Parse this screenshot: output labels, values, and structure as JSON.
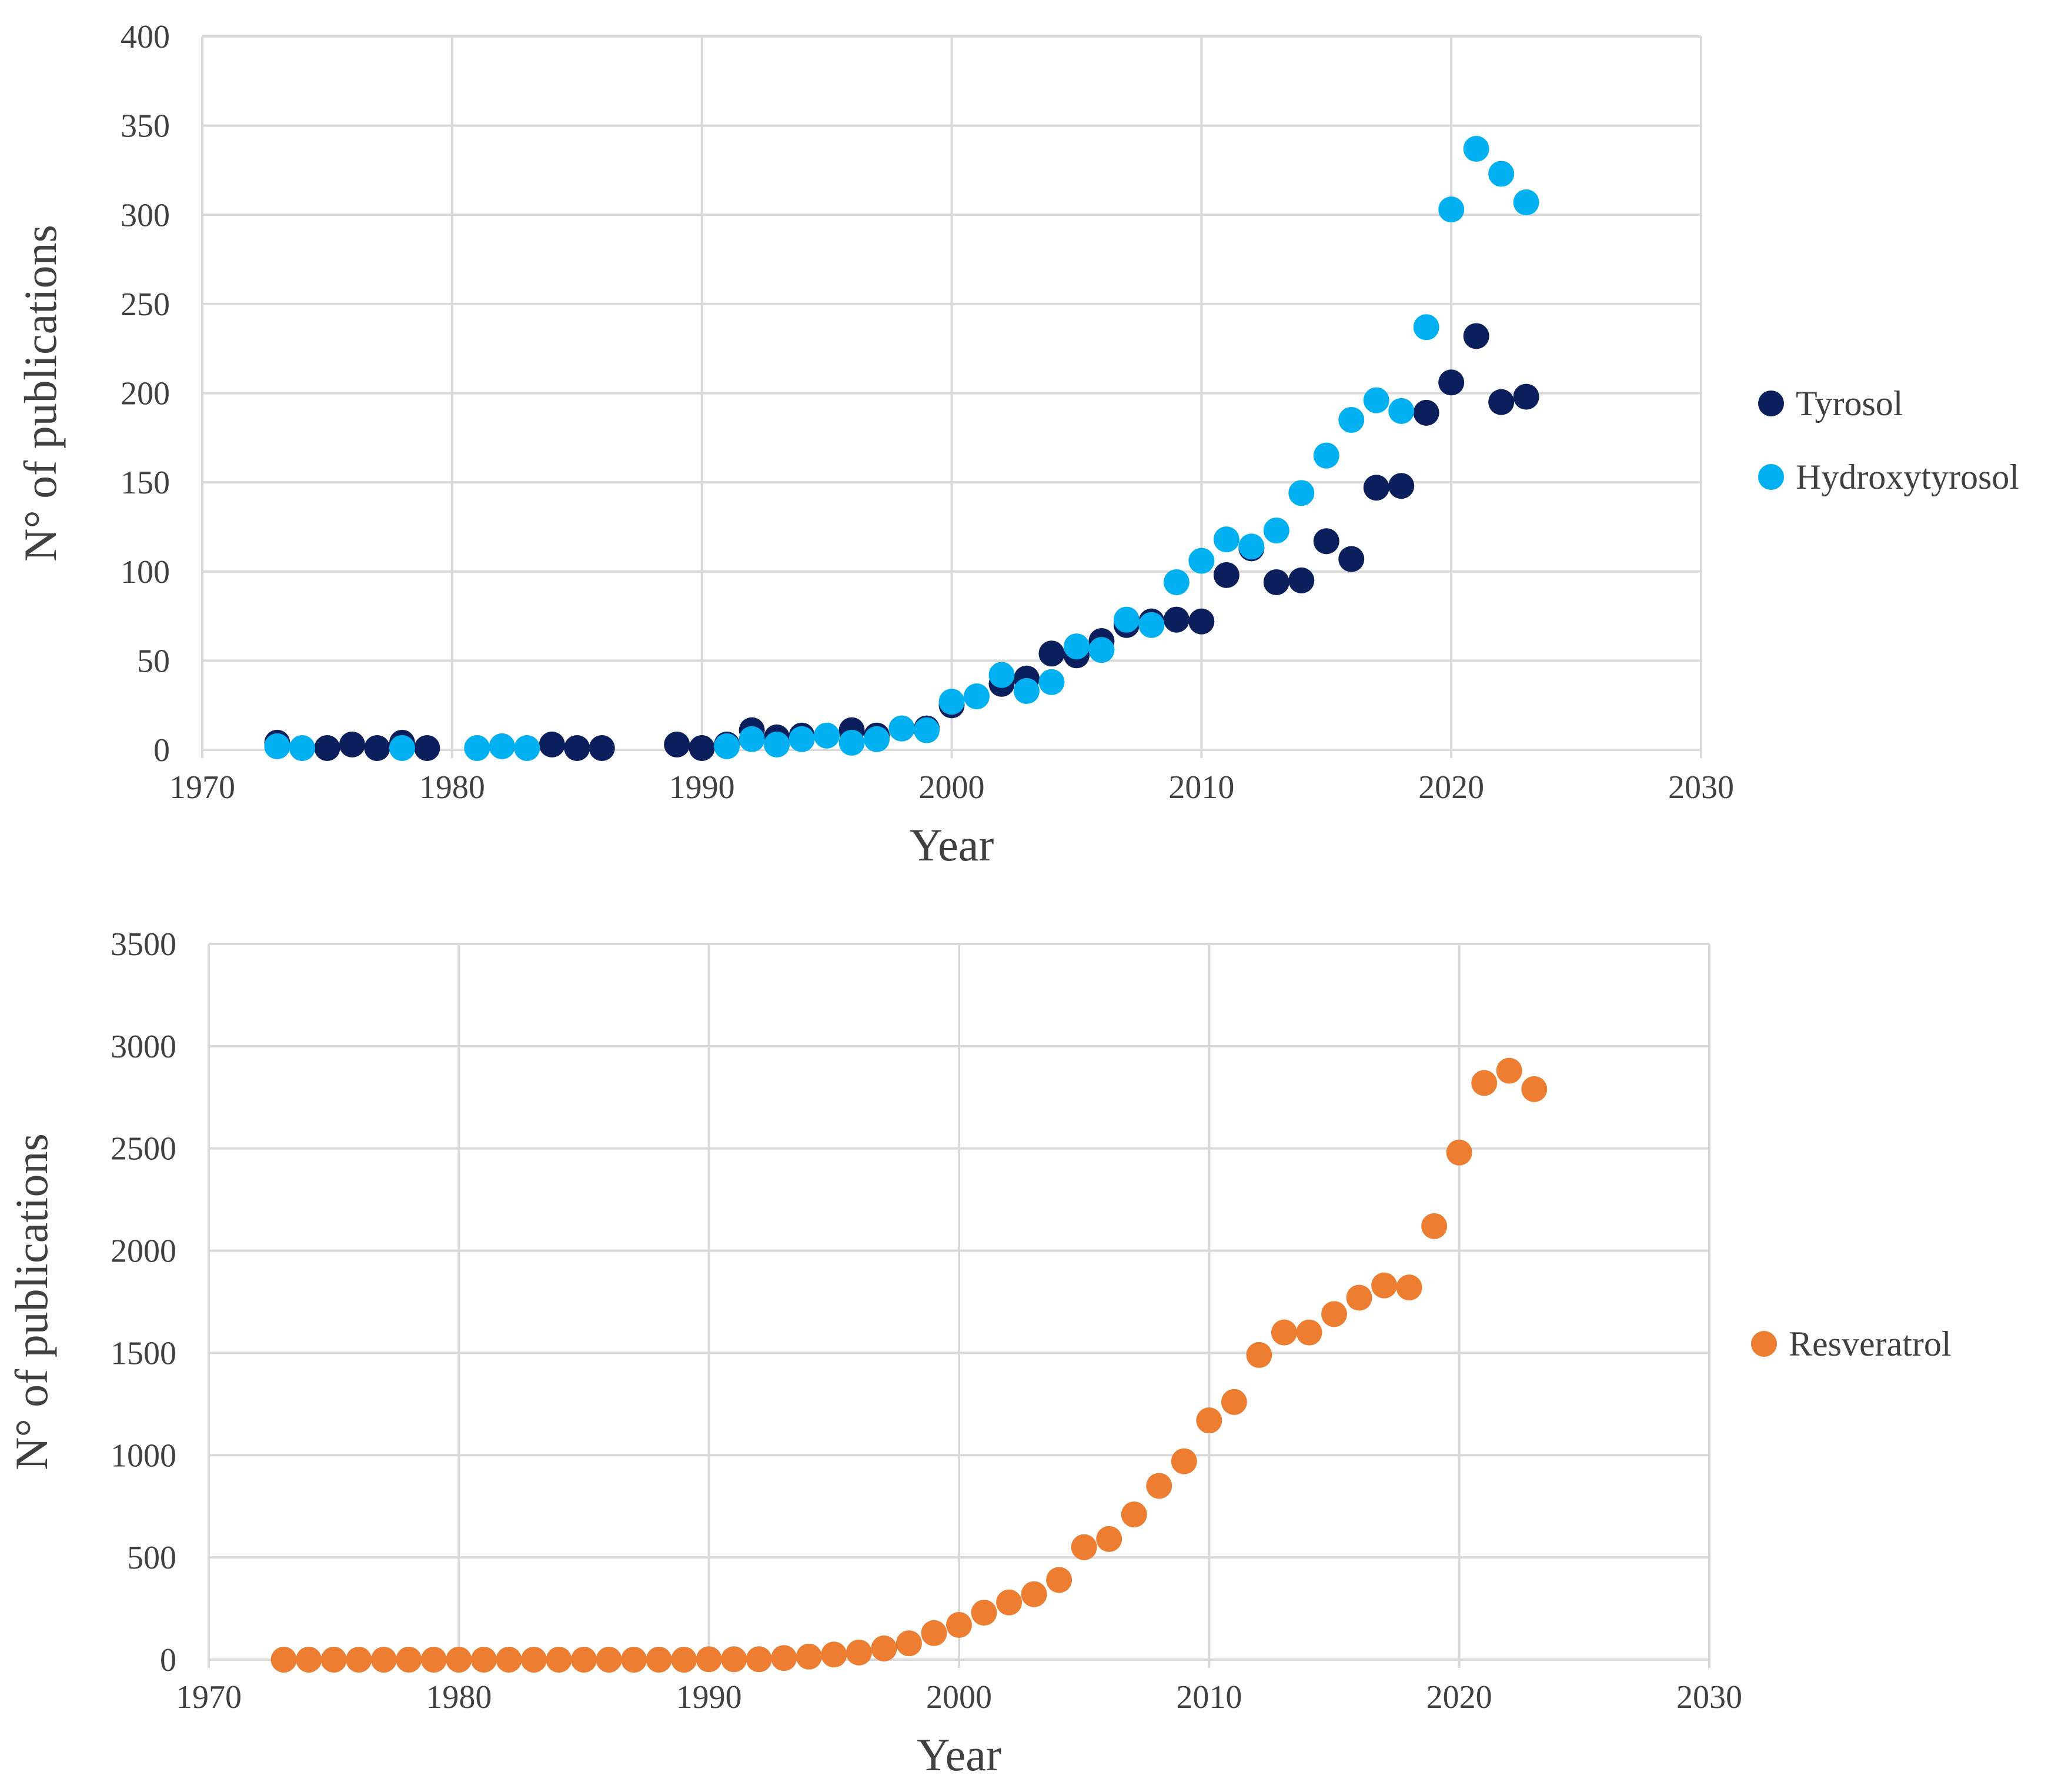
{
  "chart_data": [
    {
      "type": "scatter",
      "title": "",
      "xlabel": "Year",
      "ylabel": "N° of publications",
      "xlim": [
        1970,
        2030
      ],
      "ylim": [
        0,
        400
      ],
      "xticks": [
        1970,
        1980,
        1990,
        2000,
        2010,
        2020,
        2030
      ],
      "yticks": [
        0,
        50,
        100,
        150,
        200,
        250,
        300,
        350,
        400
      ],
      "grid": true,
      "legend_position": "right",
      "series": [
        {
          "name": "Tyrosol",
          "color": "#0b1f5c",
          "x": [
            1973,
            1975,
            1976,
            1977,
            1978,
            1979,
            1984,
            1985,
            1986,
            1989,
            1990,
            1991,
            1992,
            1993,
            1994,
            1996,
            1997,
            1998,
            1999,
            2000,
            2002,
            2003,
            2004,
            2005,
            2006,
            2007,
            2008,
            2009,
            2010,
            2011,
            2012,
            2013,
            2014,
            2015,
            2016,
            2017,
            2018,
            2019,
            2020,
            2021,
            2022,
            2023
          ],
          "y": [
            4,
            1,
            3,
            1,
            4,
            1,
            3,
            1,
            1,
            3,
            1,
            3,
            11,
            7,
            8,
            11,
            8,
            12,
            12,
            25,
            37,
            40,
            54,
            53,
            61,
            70,
            72,
            73,
            72,
            98,
            113,
            94,
            95,
            117,
            107,
            147,
            148,
            189,
            206,
            232,
            195,
            198
          ]
        },
        {
          "name": "Hydroxytyrosol",
          "color": "#00b0f0",
          "x": [
            1973,
            1974,
            1978,
            1981,
            1982,
            1983,
            1991,
            1992,
            1993,
            1994,
            1995,
            1996,
            1997,
            1998,
            1999,
            2000,
            2001,
            2002,
            2003,
            2004,
            2005,
            2006,
            2007,
            2008,
            2009,
            2010,
            2011,
            2012,
            2013,
            2014,
            2015,
            2016,
            2017,
            2018,
            2019,
            2020,
            2021,
            2022,
            2023
          ],
          "y": [
            2,
            1,
            1,
            1,
            2,
            1,
            2,
            6,
            3,
            6,
            8,
            4,
            6,
            12,
            11,
            27,
            30,
            42,
            33,
            38,
            58,
            56,
            73,
            70,
            94,
            106,
            118,
            114,
            123,
            144,
            165,
            185,
            196,
            190,
            237,
            303,
            337,
            323,
            307
          ]
        }
      ]
    },
    {
      "type": "scatter",
      "title": "",
      "xlabel": "Year",
      "ylabel": "N° of publications",
      "xlim": [
        1970,
        2030
      ],
      "ylim": [
        0,
        3500
      ],
      "xticks": [
        1970,
        1980,
        1990,
        2000,
        2010,
        2020,
        2030
      ],
      "yticks": [
        0,
        500,
        1000,
        1500,
        2000,
        2500,
        3000,
        3500
      ],
      "grid": true,
      "legend_position": "right",
      "series": [
        {
          "name": "Resveratrol",
          "color": "#ed7d31",
          "x": [
            1973,
            1974,
            1975,
            1976,
            1977,
            1978,
            1979,
            1980,
            1981,
            1982,
            1983,
            1984,
            1985,
            1986,
            1987,
            1988,
            1989,
            1990,
            1991,
            1992,
            1993,
            1994,
            1995,
            1996,
            1997,
            1998,
            1999,
            2000,
            2001,
            2002,
            2003,
            2004,
            2005,
            2006,
            2007,
            2008,
            2009,
            2010,
            2011,
            2012,
            2013,
            2014,
            2015,
            2016,
            2017,
            2018,
            2019,
            2020,
            2021,
            2022,
            2023
          ],
          "y": [
            0,
            0,
            0,
            0,
            0,
            0,
            0,
            0,
            0,
            0,
            0,
            0,
            0,
            0,
            0,
            0,
            0,
            2,
            2,
            2,
            8,
            15,
            25,
            35,
            55,
            80,
            130,
            170,
            230,
            280,
            320,
            390,
            550,
            590,
            710,
            850,
            970,
            1170,
            1260,
            1490,
            1600,
            1600,
            1690,
            1770,
            1830,
            1820,
            2120,
            2480,
            2820,
            2880,
            2790
          ]
        }
      ]
    }
  ]
}
